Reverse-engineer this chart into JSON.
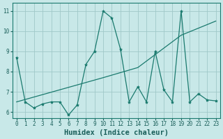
{
  "title": "",
  "xlabel": "Humidex (Indice chaleur)",
  "ylabel": "",
  "bg_color": "#c8e8e8",
  "line_color": "#1a7a6e",
  "grid_color": "#a0c8c8",
  "xlim": [
    -0.5,
    23.5
  ],
  "ylim": [
    5.7,
    11.4
  ],
  "xticks": [
    0,
    1,
    2,
    3,
    4,
    5,
    6,
    7,
    8,
    9,
    10,
    11,
    12,
    13,
    14,
    15,
    16,
    17,
    18,
    19,
    20,
    21,
    22,
    23
  ],
  "yticks": [
    6,
    7,
    8,
    9,
    10,
    11
  ],
  "data_x": [
    0,
    1,
    2,
    3,
    4,
    5,
    6,
    7,
    8,
    9,
    10,
    11,
    12,
    13,
    14,
    15,
    16,
    17,
    18,
    19,
    20,
    21,
    22,
    23
  ],
  "data_y": [
    8.7,
    6.5,
    6.2,
    6.4,
    6.5,
    6.5,
    5.85,
    6.35,
    8.35,
    9.0,
    11.0,
    10.65,
    9.1,
    6.5,
    7.25,
    6.5,
    9.0,
    7.1,
    6.5,
    11.0,
    6.5,
    6.9,
    6.6,
    6.55
  ],
  "trend_x": [
    0,
    5,
    10,
    14,
    19,
    23
  ],
  "trend_y": [
    6.5,
    7.1,
    7.7,
    8.2,
    9.8,
    10.5
  ],
  "font_color": "#1a5f5a",
  "tick_fontsize": 5.5,
  "label_fontsize": 7.5
}
